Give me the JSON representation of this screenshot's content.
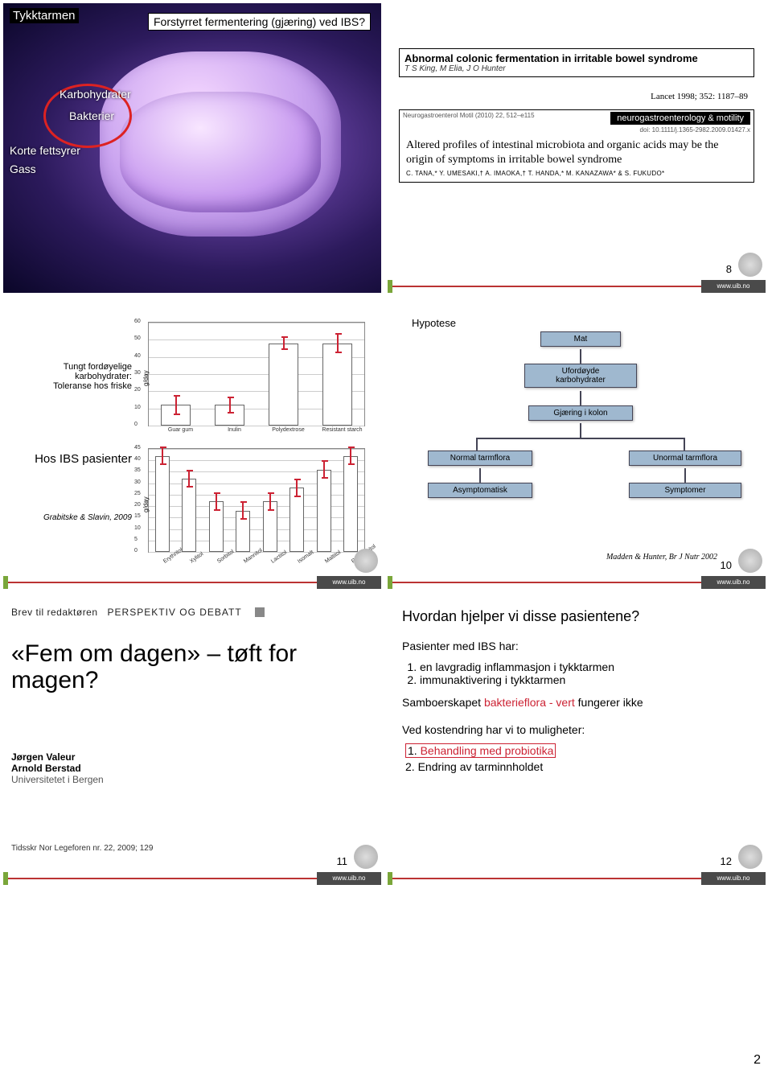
{
  "page_number": "2",
  "slide1": {
    "title": "Tykktarmen",
    "question_box": "Forstyrret fermentering (gjæring) ved IBS?",
    "labels": {
      "karbo": "Karbohydrater",
      "bakterier": "Bakterier",
      "korte": "Korte fettsyrer",
      "gass": "Gass"
    }
  },
  "slide2": {
    "box1_title": "Abnormal colonic fermentation in irritable bowel syndrome",
    "box1_authors": "T S King, M Elia, J O Hunter",
    "lancet": "Lancet 1998; 352: 1187–89",
    "ngm_bar": "neurogastroenterology & motility",
    "ngm_meta_left": "Neurogastroenterol Motil (2010) 22, 512–e115",
    "ngm_meta_right": "doi: 10.1111/j.1365-2982.2009.01427.x",
    "box2_text": "Altered profiles of intestinal microbiota and organic acids may be the origin of symptoms in irritable bowel syndrome",
    "box2_authors": "C. TANA,* Y. UMESAKI,† A. IMAOKA,† T. HANDA,* M. KANAZAWA* & S. FUKUDO*",
    "page": "8",
    "footer_url": "www.uib.no"
  },
  "slide3": {
    "side1_line1": "Tungt fordøyelige karbohydrater:",
    "side1_line2": "Toleranse hos friske",
    "side2": "Hos IBS pasienter",
    "side3": "Grabitske & Slavin, 2009",
    "chart1": {
      "ylabel": "g/day",
      "ymax": 60,
      "ystep": 10,
      "categories": [
        "Guar gum",
        "Inulin",
        "Polydextrose",
        "Resistant starch"
      ],
      "values": [
        12,
        12,
        48,
        48
      ],
      "err": [
        6,
        5,
        4,
        6
      ],
      "bar_fill": "#ffffff",
      "bar_border": "#555555",
      "err_color": "#c23434",
      "grid_color": "#cccccc"
    },
    "chart2": {
      "ylabel": "g/day",
      "ymax": 45,
      "ystep": 5,
      "categories": [
        "Erythritol",
        "Xylitol",
        "Sorbitol",
        "Mannitol",
        "Lactitol",
        "Isomalt",
        "Maltitol",
        "Polyglycitol"
      ],
      "values": [
        42,
        32,
        22,
        18,
        22,
        28,
        36,
        42
      ],
      "err": [
        4,
        4,
        4,
        4,
        4,
        4,
        4,
        4
      ]
    },
    "footer_url": "www.uib.no"
  },
  "slide4": {
    "hypotese": "Hypotese",
    "mat": "Mat",
    "ufordoyde": "Ufordøyde\nkarbohydrater",
    "gjaring": "Gjæring i kolon",
    "normal": "Normal tarmflora",
    "unormal": "Unormal tarmflora",
    "asymp": "Asymptomatisk",
    "symp": "Symptomer",
    "cite": "Madden & Hunter, Br J Nutr 2002",
    "page": "10",
    "footer_url": "www.uib.no",
    "box_fill": "#9fb8cf",
    "box_border": "#445566"
  },
  "slide5": {
    "kicker_left": "Brev til redaktøren",
    "kicker_right": "PERSPEKTIV OG DEBATT",
    "title": "«Fem om dagen» – tøft for magen?",
    "author1": "Jørgen Valeur",
    "author2": "Arnold Berstad",
    "affil": "Universitetet i Bergen",
    "meta": "Tidsskr Nor Legeforen nr. 22, 2009; 129",
    "page": "11",
    "footer_url": "www.uib.no"
  },
  "slide6": {
    "heading": "Hvordan hjelper vi disse pasientene?",
    "intro": "Pasienter med IBS har:",
    "item1": "en lavgradig inflammasjon i tykktarmen",
    "item2": "immunaktivering i tykktarmen",
    "samboer_pre": "Samboerskapet ",
    "samboer_red": "bakterieflora - vert",
    "samboer_post": " fungerer ikke",
    "ved": "Ved kostendring har vi to muligheter:",
    "opt1": "Behandling med probiotika",
    "opt2": "Endring av tarminnholdet",
    "page": "12",
    "footer_url": "www.uib.no"
  }
}
